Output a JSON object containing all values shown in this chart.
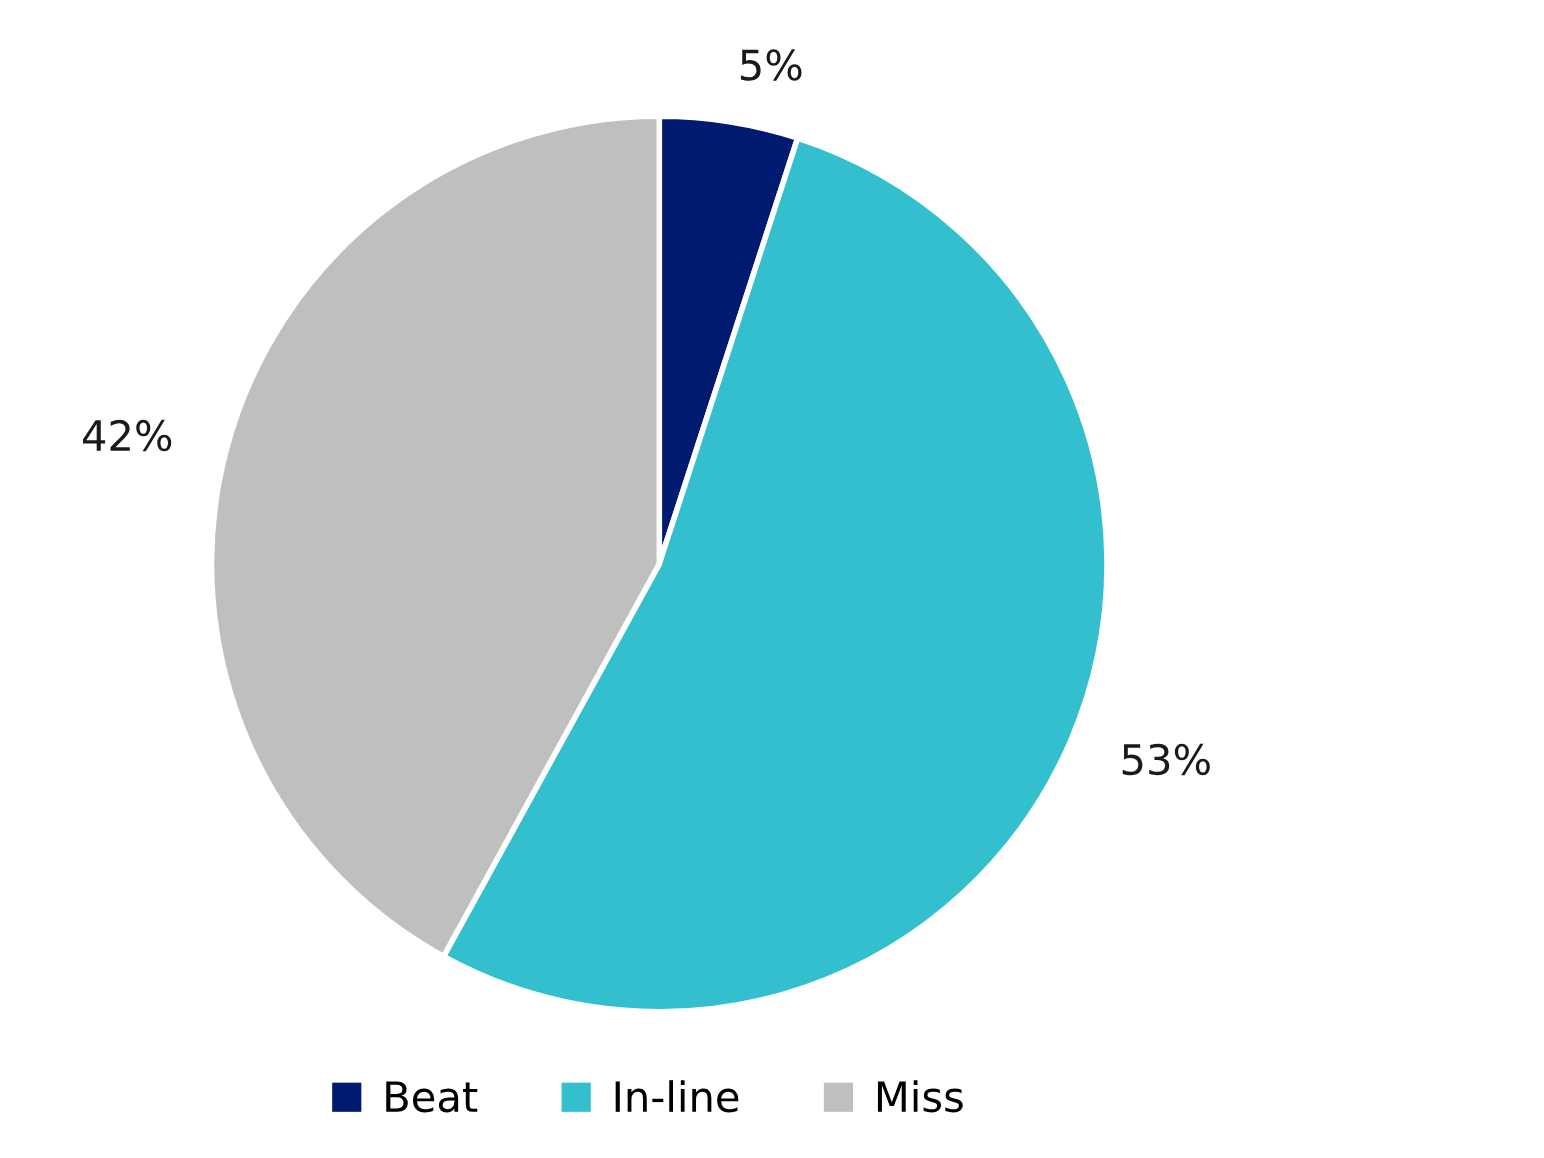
{
  "chart_data": {
    "type": "pie",
    "categories": [
      "Beat",
      "In-line",
      "Miss"
    ],
    "values": [
      5,
      53,
      42
    ],
    "colors": [
      "#001a70",
      "#33bfcd",
      "#bfbfbf"
    ],
    "value_labels": [
      "5%",
      "53%",
      "42%"
    ],
    "legend": "bottom"
  }
}
